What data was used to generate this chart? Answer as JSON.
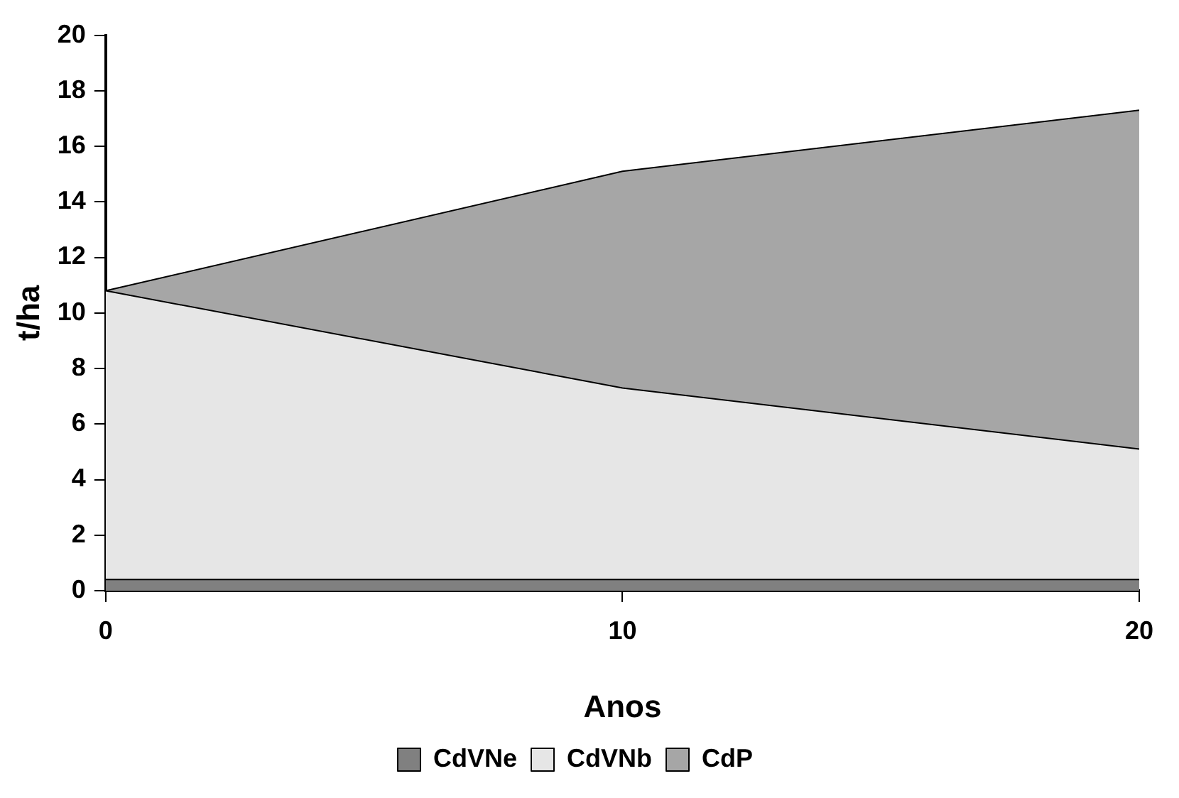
{
  "chart_data": {
    "type": "area",
    "stacked": true,
    "xlabel": "Anos",
    "ylabel": "t/ha",
    "x": [
      0,
      10,
      20
    ],
    "xlim": [
      0,
      20
    ],
    "xticks": [
      0,
      10,
      20
    ],
    "ylim": [
      0,
      20
    ],
    "yticks": [
      0,
      2,
      4,
      6,
      8,
      10,
      12,
      14,
      16,
      18,
      20
    ],
    "grid": false,
    "legend": "bottom",
    "marker": "none",
    "series": [
      {
        "name": "CdVNe",
        "color": "#808080",
        "values": [
          0.4,
          0.4,
          0.4
        ]
      },
      {
        "name": "CdVNb",
        "color": "#e6e6e6",
        "values": [
          10.4,
          6.9,
          4.7
        ]
      },
      {
        "name": "CdP",
        "color": "#a6a6a6",
        "values": [
          0,
          7.8,
          12.2
        ]
      }
    ]
  }
}
